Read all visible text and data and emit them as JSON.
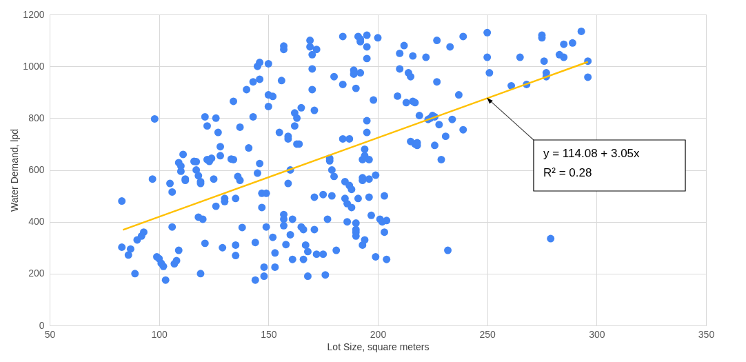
{
  "chart_data": {
    "type": "scatter",
    "xlabel": "Lot Size, square meters",
    "ylabel": "Water Demand, lpd",
    "xlim": [
      50,
      350
    ],
    "xticks": [
      50,
      100,
      150,
      200,
      250,
      300,
      350
    ],
    "ylim": [
      0,
      1200
    ],
    "yticks": [
      0,
      200,
      400,
      600,
      800,
      1000,
      1200
    ],
    "grid": true,
    "marker": "circle",
    "series": [
      {
        "color": "#4285f4",
        "x": [
          83,
          83,
          86,
          87,
          89,
          90,
          92,
          93,
          97,
          98,
          99,
          100,
          101,
          102,
          103,
          105,
          106,
          106,
          107,
          108,
          109,
          109,
          110,
          110,
          111,
          112,
          112,
          116,
          117,
          117,
          118,
          118,
          119,
          119,
          119,
          120,
          121,
          121,
          122,
          122,
          123,
          124,
          125,
          126,
          126,
          127,
          128,
          128,
          129,
          130,
          130,
          133,
          134,
          134,
          135,
          135,
          135,
          136,
          137,
          137,
          138,
          140,
          141,
          143,
          143,
          144,
          144,
          145,
          145,
          146,
          146,
          146,
          147,
          147,
          148,
          148,
          149,
          149,
          150,
          150,
          150,
          152,
          152,
          153,
          153,
          155,
          156,
          157,
          157,
          157,
          157,
          157,
          158,
          159,
          159,
          159,
          160,
          160,
          161,
          161,
          162,
          162,
          163,
          163,
          164,
          165,
          165,
          166,
          166,
          167,
          168,
          168,
          169,
          169,
          170,
          170,
          170,
          171,
          171,
          171,
          172,
          172,
          175,
          175,
          176,
          177,
          178,
          178,
          179,
          179,
          180,
          180,
          181,
          184,
          184,
          184,
          185,
          185,
          186,
          186,
          187,
          187,
          188,
          188,
          189,
          189,
          190,
          190,
          190,
          190,
          190,
          191,
          191,
          192,
          192,
          192,
          193,
          193,
          193,
          193,
          194,
          194,
          194,
          195,
          195,
          195,
          195,
          195,
          196,
          196,
          196,
          197,
          198,
          199,
          199,
          200,
          201,
          202,
          203,
          203,
          204,
          204,
          209,
          210,
          210,
          212,
          213,
          214,
          215,
          215,
          216,
          216,
          217,
          217,
          218,
          218,
          219,
          222,
          223,
          224,
          225,
          226,
          226,
          227,
          227,
          228,
          229,
          231,
          232,
          233,
          234,
          237,
          239,
          239,
          250,
          250,
          251,
          261,
          265,
          268,
          275,
          275,
          276,
          277,
          277,
          279,
          283,
          285,
          285,
          289,
          293,
          296,
          296
        ],
        "values": [
          480,
          302,
          272,
          295,
          200,
          330,
          345,
          360,
          565,
          797,
          265,
          258,
          240,
          228,
          175,
          548,
          515,
          380,
          238,
          250,
          290,
          628,
          615,
          595,
          660,
          565,
          560,
          633,
          632,
          600,
          578,
          418,
          555,
          548,
          200,
          410,
          317,
          805,
          770,
          640,
          633,
          645,
          565,
          460,
          800,
          745,
          655,
          690,
          300,
          490,
          478,
          642,
          865,
          640,
          490,
          270,
          310,
          575,
          560,
          765,
          378,
          910,
          685,
          805,
          940,
          175,
          320,
          588,
          1000,
          1015,
          950,
          625,
          510,
          455,
          225,
          190,
          380,
          510,
          890,
          845,
          1010,
          884,
          340,
          280,
          225,
          745,
          945,
          1078,
          1065,
          428,
          410,
          385,
          312,
          730,
          720,
          548,
          350,
          600,
          255,
          410,
          770,
          820,
          800,
          700,
          700,
          840,
          380,
          370,
          255,
          310,
          190,
          285,
          1100,
          1075,
          1045,
          990,
          910,
          830,
          495,
          370,
          275,
          1065,
          505,
          275,
          195,
          410,
          645,
          635,
          600,
          500,
          960,
          575,
          290,
          1115,
          930,
          720,
          490,
          555,
          470,
          400,
          720,
          540,
          525,
          455,
          985,
          970,
          915,
          370,
          345,
          395,
          360,
          490,
          1115,
          1105,
          1095,
          975,
          640,
          570,
          560,
          310,
          330,
          680,
          655,
          1120,
          1075,
          1030,
          790,
          745,
          640,
          565,
          495,
          425,
          870,
          580,
          265,
          1110,
          410,
          400,
          360,
          500,
          255,
          405,
          885,
          1050,
          990,
          1080,
          860,
          975,
          960,
          710,
          1040,
          865,
          860,
          700,
          695,
          705,
          810,
          1035,
          795,
          800,
          810,
          805,
          695,
          940,
          1100,
          775,
          640,
          730,
          290,
          1075,
          795,
          890,
          1115,
          755,
          1130,
          1035,
          975,
          925,
          1035,
          930,
          1120,
          1110,
          1020,
          975,
          960,
          335,
          1045,
          1085,
          1035,
          1090,
          1135,
          1020,
          958
        ]
      },
      {
        "type": "line",
        "color": "#ffc000",
        "marker": "none",
        "x": [
          83.5,
          296
        ],
        "values": [
          369,
          1017
        ]
      }
    ],
    "annotations": [
      {
        "text": "y = 114.08 + 3.05x\nR² = 0.28",
        "x": 250,
        "y": 877
      }
    ]
  }
}
